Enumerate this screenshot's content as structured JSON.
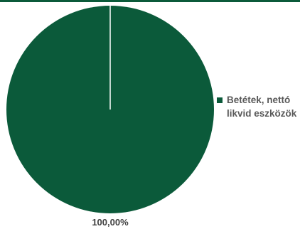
{
  "chart_data": {
    "type": "pie",
    "slices": [
      {
        "label": "Betétek, nettó likvid eszközök",
        "value": 100.0,
        "display_value": "100,00%",
        "color": "#0b5a3a"
      }
    ],
    "legend_position": "right"
  },
  "colors": {
    "accent": "#0b5a3a",
    "legend_text": "#595959",
    "label_text": "#404040"
  }
}
